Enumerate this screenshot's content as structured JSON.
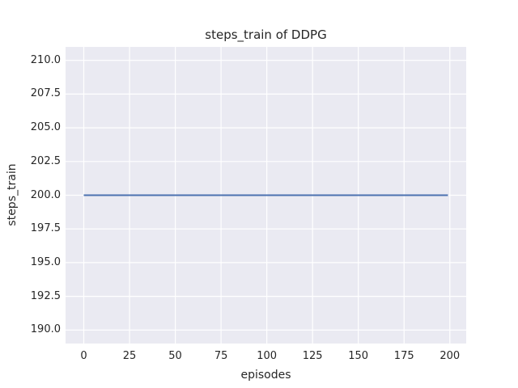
{
  "colors": {
    "figure_bg": "#ffffff",
    "axes_bg": "#eaeaf2",
    "grid": "#ffffff",
    "line": "#4c72b0",
    "text": "#262626"
  },
  "chart_data": {
    "type": "line",
    "title": "steps_train of DDPG",
    "xlabel": "episodes",
    "ylabel": "steps_train",
    "xlim": [
      -9.95,
      208.95
    ],
    "ylim": [
      189,
      211
    ],
    "xticks": [
      0,
      25,
      50,
      75,
      100,
      125,
      150,
      175,
      200
    ],
    "xtick_labels": [
      "0",
      "25",
      "50",
      "75",
      "100",
      "125",
      "150",
      "175",
      "200"
    ],
    "yticks": [
      190.0,
      192.5,
      195.0,
      197.5,
      200.0,
      202.5,
      205.0,
      207.5,
      210.0
    ],
    "ytick_labels": [
      "190.0",
      "192.5",
      "195.0",
      "197.5",
      "200.0",
      "202.5",
      "205.0",
      "207.5",
      "210.0"
    ],
    "grid": true,
    "legend_visible": false,
    "series": [
      {
        "name": "steps_train",
        "color": "#4c72b0",
        "x": [
          0,
          199
        ],
        "y": [
          200,
          200
        ]
      }
    ]
  }
}
